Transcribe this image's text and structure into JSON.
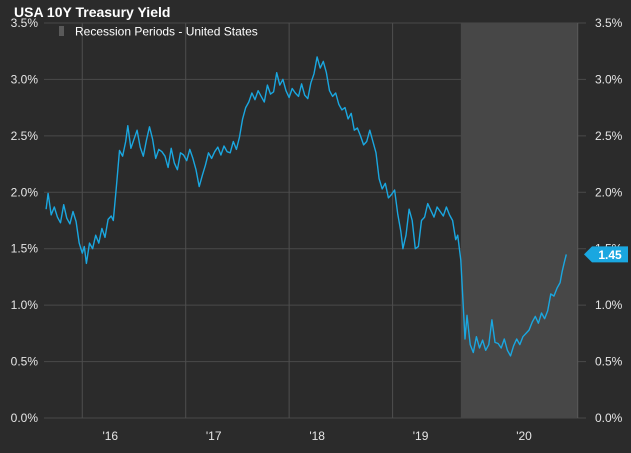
{
  "chart_data": {
    "type": "line",
    "title": "USA 10Y Treasury Yield",
    "legend": [
      {
        "label": "Recession Periods - United States",
        "color": "#5a5a5a"
      }
    ],
    "yticks": [
      "0.0%",
      "0.5%",
      "1.0%",
      "1.5%",
      "2.0%",
      "2.5%",
      "3.0%",
      "3.5%"
    ],
    "ylim": [
      0,
      3.5
    ],
    "xlim": [
      2015.63,
      2020.87
    ],
    "xticks": [
      {
        "label": "'16",
        "value": 2016.0
      },
      {
        "label": "'17",
        "value": 2017.0
      },
      {
        "label": "'18",
        "value": 2018.0
      },
      {
        "label": "'19",
        "value": 2019.0
      },
      {
        "label": "'20",
        "value": 2020.0
      }
    ],
    "recession": {
      "start": 2019.66,
      "end": 2020.79
    },
    "last_value_label": "1.45",
    "series": [
      {
        "name": "USA 10Y Treasury Yield",
        "color": "#1aa7e0",
        "points": [
          [
            2015.65,
            1.85
          ],
          [
            2015.67,
            1.99
          ],
          [
            2015.7,
            1.8
          ],
          [
            2015.73,
            1.87
          ],
          [
            2015.76,
            1.78
          ],
          [
            2015.79,
            1.73
          ],
          [
            2015.82,
            1.89
          ],
          [
            2015.85,
            1.77
          ],
          [
            2015.88,
            1.72
          ],
          [
            2015.91,
            1.83
          ],
          [
            2015.94,
            1.74
          ],
          [
            2015.97,
            1.55
          ],
          [
            2016.0,
            1.46
          ],
          [
            2016.02,
            1.52
          ],
          [
            2016.04,
            1.37
          ],
          [
            2016.07,
            1.55
          ],
          [
            2016.1,
            1.5
          ],
          [
            2016.13,
            1.62
          ],
          [
            2016.16,
            1.55
          ],
          [
            2016.19,
            1.68
          ],
          [
            2016.22,
            1.6
          ],
          [
            2016.25,
            1.76
          ],
          [
            2016.28,
            1.79
          ],
          [
            2016.3,
            1.75
          ],
          [
            2016.33,
            2.05
          ],
          [
            2016.36,
            2.37
          ],
          [
            2016.39,
            2.32
          ],
          [
            2016.42,
            2.45
          ],
          [
            2016.44,
            2.59
          ],
          [
            2016.47,
            2.39
          ],
          [
            2016.5,
            2.47
          ],
          [
            2016.53,
            2.55
          ],
          [
            2016.56,
            2.4
          ],
          [
            2016.59,
            2.32
          ],
          [
            2016.62,
            2.46
          ],
          [
            2016.65,
            2.58
          ],
          [
            2016.68,
            2.47
          ],
          [
            2016.71,
            2.3
          ],
          [
            2016.74,
            2.38
          ],
          [
            2016.77,
            2.36
          ],
          [
            2016.8,
            2.32
          ],
          [
            2016.83,
            2.22
          ],
          [
            2016.86,
            2.39
          ],
          [
            2016.89,
            2.26
          ],
          [
            2016.92,
            2.2
          ],
          [
            2016.95,
            2.35
          ],
          [
            2016.98,
            2.33
          ],
          [
            2017.01,
            2.28
          ],
          [
            2017.04,
            2.38
          ],
          [
            2017.07,
            2.3
          ],
          [
            2017.1,
            2.2
          ],
          [
            2017.13,
            2.05
          ],
          [
            2017.16,
            2.15
          ],
          [
            2017.19,
            2.24
          ],
          [
            2017.22,
            2.35
          ],
          [
            2017.25,
            2.3
          ],
          [
            2017.28,
            2.36
          ],
          [
            2017.31,
            2.4
          ],
          [
            2017.34,
            2.33
          ],
          [
            2017.37,
            2.41
          ],
          [
            2017.4,
            2.36
          ],
          [
            2017.43,
            2.35
          ],
          [
            2017.46,
            2.45
          ],
          [
            2017.49,
            2.38
          ],
          [
            2017.52,
            2.49
          ],
          [
            2017.55,
            2.65
          ],
          [
            2017.58,
            2.75
          ],
          [
            2017.61,
            2.8
          ],
          [
            2017.64,
            2.88
          ],
          [
            2017.67,
            2.82
          ],
          [
            2017.7,
            2.9
          ],
          [
            2017.73,
            2.85
          ],
          [
            2017.76,
            2.8
          ],
          [
            2017.79,
            2.95
          ],
          [
            2017.82,
            2.87
          ],
          [
            2017.85,
            2.89
          ],
          [
            2017.88,
            3.06
          ],
          [
            2017.91,
            2.95
          ],
          [
            2017.94,
            3.0
          ],
          [
            2017.97,
            2.9
          ],
          [
            2018.0,
            2.84
          ],
          [
            2018.03,
            2.92
          ],
          [
            2018.06,
            2.88
          ],
          [
            2018.09,
            2.85
          ],
          [
            2018.12,
            2.96
          ],
          [
            2018.15,
            2.86
          ],
          [
            2018.18,
            2.83
          ],
          [
            2018.21,
            2.97
          ],
          [
            2018.24,
            3.05
          ],
          [
            2018.27,
            3.2
          ],
          [
            2018.3,
            3.1
          ],
          [
            2018.33,
            3.16
          ],
          [
            2018.36,
            3.06
          ],
          [
            2018.39,
            2.9
          ],
          [
            2018.42,
            2.85
          ],
          [
            2018.45,
            2.88
          ],
          [
            2018.48,
            2.78
          ],
          [
            2018.51,
            2.73
          ],
          [
            2018.54,
            2.75
          ],
          [
            2018.57,
            2.65
          ],
          [
            2018.6,
            2.7
          ],
          [
            2018.63,
            2.55
          ],
          [
            2018.66,
            2.57
          ],
          [
            2018.69,
            2.5
          ],
          [
            2018.72,
            2.42
          ],
          [
            2018.75,
            2.45
          ],
          [
            2018.78,
            2.55
          ],
          [
            2018.81,
            2.45
          ],
          [
            2018.84,
            2.35
          ],
          [
            2018.87,
            2.12
          ],
          [
            2018.9,
            2.03
          ],
          [
            2018.93,
            2.08
          ],
          [
            2018.96,
            1.95
          ],
          [
            2018.99,
            1.98
          ],
          [
            2019.02,
            2.02
          ],
          [
            2019.05,
            1.81
          ],
          [
            2019.08,
            1.65
          ],
          [
            2019.1,
            1.5
          ],
          [
            2019.13,
            1.62
          ],
          [
            2019.16,
            1.85
          ],
          [
            2019.19,
            1.75
          ],
          [
            2019.22,
            1.5
          ],
          [
            2019.25,
            1.52
          ],
          [
            2019.28,
            1.75
          ],
          [
            2019.31,
            1.78
          ],
          [
            2019.34,
            1.9
          ],
          [
            2019.37,
            1.84
          ],
          [
            2019.4,
            1.78
          ],
          [
            2019.43,
            1.87
          ],
          [
            2019.46,
            1.83
          ],
          [
            2019.49,
            1.79
          ],
          [
            2019.52,
            1.87
          ],
          [
            2019.55,
            1.8
          ],
          [
            2019.58,
            1.75
          ],
          [
            2019.61,
            1.58
          ],
          [
            2019.63,
            1.62
          ],
          [
            2019.66,
            1.4
          ],
          [
            2019.68,
            1.05
          ],
          [
            2019.7,
            0.7
          ],
          [
            2019.72,
            0.91
          ],
          [
            2019.75,
            0.65
          ],
          [
            2019.78,
            0.58
          ],
          [
            2019.81,
            0.72
          ],
          [
            2019.84,
            0.62
          ],
          [
            2019.87,
            0.69
          ],
          [
            2019.9,
            0.6
          ],
          [
            2019.93,
            0.65
          ],
          [
            2019.96,
            0.87
          ],
          [
            2019.99,
            0.67
          ],
          [
            2020.02,
            0.66
          ],
          [
            2020.05,
            0.62
          ],
          [
            2020.08,
            0.7
          ],
          [
            2020.11,
            0.6
          ],
          [
            2020.14,
            0.55
          ],
          [
            2020.17,
            0.64
          ],
          [
            2020.2,
            0.7
          ],
          [
            2020.23,
            0.65
          ],
          [
            2020.26,
            0.72
          ],
          [
            2020.29,
            0.75
          ],
          [
            2020.32,
            0.78
          ],
          [
            2020.35,
            0.85
          ],
          [
            2020.38,
            0.9
          ],
          [
            2020.41,
            0.84
          ],
          [
            2020.44,
            0.93
          ],
          [
            2020.47,
            0.88
          ],
          [
            2020.5,
            0.95
          ],
          [
            2020.53,
            1.1
          ],
          [
            2020.56,
            1.08
          ],
          [
            2020.59,
            1.15
          ],
          [
            2020.62,
            1.2
          ],
          [
            2020.64,
            1.3
          ],
          [
            2020.66,
            1.38
          ],
          [
            2020.68,
            1.45
          ]
        ]
      }
    ]
  }
}
